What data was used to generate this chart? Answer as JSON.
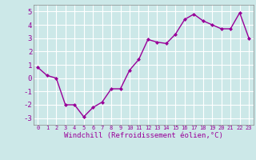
{
  "x": [
    0,
    1,
    2,
    3,
    4,
    5,
    6,
    7,
    8,
    9,
    10,
    11,
    12,
    13,
    14,
    15,
    16,
    17,
    18,
    19,
    20,
    21,
    22,
    23
  ],
  "y": [
    0.8,
    0.2,
    0.0,
    -2.0,
    -2.0,
    -2.9,
    -2.2,
    -1.8,
    -0.8,
    -0.8,
    0.6,
    1.4,
    2.9,
    2.7,
    2.6,
    3.3,
    4.4,
    4.8,
    4.3,
    4.0,
    3.7,
    3.7,
    4.9,
    3.0
  ],
  "xlabel": "Windchill (Refroidissement éolien,°C)",
  "xlim": [
    -0.5,
    23.5
  ],
  "ylim": [
    -3.5,
    5.5
  ],
  "yticks": [
    -3,
    -2,
    -1,
    0,
    1,
    2,
    3,
    4,
    5
  ],
  "xticks": [
    0,
    1,
    2,
    3,
    4,
    5,
    6,
    7,
    8,
    9,
    10,
    11,
    12,
    13,
    14,
    15,
    16,
    17,
    18,
    19,
    20,
    21,
    22,
    23
  ],
  "line_color": "#990099",
  "marker": "D",
  "marker_size": 2.0,
  "line_width": 1.0,
  "bg_color": "#cce8e8",
  "grid_color": "#ffffff",
  "tick_color": "#990099",
  "label_color": "#990099",
  "xlabel_fontsize": 6.5,
  "ytick_fontsize": 6.5,
  "xtick_fontsize": 5.0,
  "spine_color": "#888888"
}
